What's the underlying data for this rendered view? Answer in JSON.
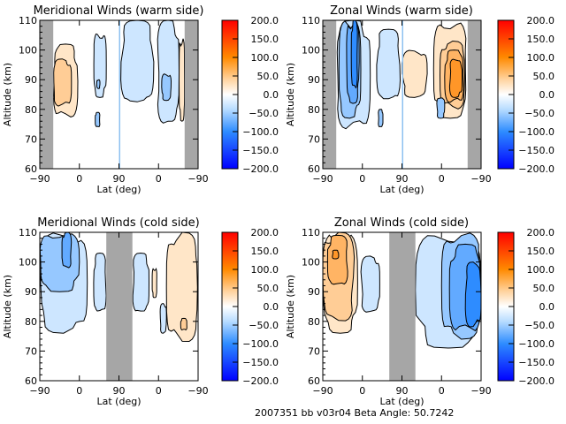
{
  "chart_data": [
    {
      "type": "heatmap",
      "title": "Meridional Winds (warm side)",
      "xlabel": "Lat (deg)",
      "ylabel": "Altitude (km)",
      "x_ticks": [
        "-90",
        "0",
        "90",
        "0",
        "-90"
      ],
      "y_ticks": [
        "60",
        "70",
        "80",
        "90",
        "100",
        "110"
      ],
      "ylim": [
        60,
        110
      ],
      "colorbar": {
        "ticks": [
          "200.0",
          "150.0",
          "100.0",
          "50.0",
          "0.0",
          "-50.0",
          "-100.0",
          "-150.0",
          "-200.0"
        ],
        "range": [
          -200,
          200
        ]
      },
      "no_data_bands": [
        [
          0,
          0.085
        ],
        [
          0.5,
          0.508
        ],
        [
          0.915,
          1.0
        ]
      ],
      "regions": [
        {
          "value": 25,
          "x": [
            0.085,
            0.24
          ],
          "y": [
            77,
            102
          ]
        },
        {
          "value": 50,
          "x": [
            0.085,
            0.2
          ],
          "y": [
            81,
            97
          ]
        },
        {
          "value": -25,
          "x": [
            0.34,
            0.42
          ],
          "y": [
            84,
            106
          ]
        },
        {
          "value": -50,
          "x": [
            0.36,
            0.38
          ],
          "y": [
            87,
            90
          ]
        },
        {
          "value": -50,
          "x": [
            0.35,
            0.38
          ],
          "y": [
            74,
            79
          ]
        },
        {
          "value": -25,
          "x": [
            0.51,
            0.72
          ],
          "y": [
            82,
            110
          ]
        },
        {
          "value": -25,
          "x": [
            0.74,
            0.88
          ],
          "y": [
            75,
            110
          ]
        },
        {
          "value": -50,
          "x": [
            0.77,
            0.83
          ],
          "y": [
            83,
            92
          ]
        },
        {
          "value": 25,
          "x": [
            0.88,
            0.915
          ],
          "y": [
            76,
            104
          ]
        }
      ]
    },
    {
      "type": "heatmap",
      "title": "Zonal Winds (warm side)",
      "xlabel": "Lat (deg)",
      "ylabel": "Altitude (km)",
      "x_ticks": [
        "-90",
        "0",
        "90",
        "0",
        "-90"
      ],
      "y_ticks": [
        "60",
        "70",
        "80",
        "90",
        "100",
        "110"
      ],
      "ylim": [
        60,
        110
      ],
      "colorbar": {
        "ticks": [
          "200.0",
          "150.0",
          "100.0",
          "50.0",
          "0.0",
          "-50.0",
          "-100.0",
          "-150.0",
          "-200.0"
        ],
        "range": [
          -200,
          200
        ]
      },
      "no_data_bands": [
        [
          0,
          0.085
        ],
        [
          0.5,
          0.508
        ],
        [
          0.915,
          1.0
        ]
      ],
      "regions": [
        {
          "value": -25,
          "x": [
            0.085,
            0.3
          ],
          "y": [
            73,
            110
          ]
        },
        {
          "value": -50,
          "x": [
            0.1,
            0.24
          ],
          "y": [
            77,
            110
          ]
        },
        {
          "value": -75,
          "x": [
            0.15,
            0.23
          ],
          "y": [
            82,
            110
          ]
        },
        {
          "value": -100,
          "x": [
            0.18,
            0.22
          ],
          "y": [
            87,
            110
          ]
        },
        {
          "value": -25,
          "x": [
            0.34,
            0.49
          ],
          "y": [
            83,
            107
          ]
        },
        {
          "value": -50,
          "x": [
            0.35,
            0.38
          ],
          "y": [
            74,
            80
          ]
        },
        {
          "value": 25,
          "x": [
            0.5,
            0.66
          ],
          "y": [
            84,
            100
          ]
        },
        {
          "value": 25,
          "x": [
            0.7,
            0.91
          ],
          "y": [
            77,
            110
          ]
        },
        {
          "value": 50,
          "x": [
            0.74,
            0.9
          ],
          "y": [
            80,
            103
          ]
        },
        {
          "value": 75,
          "x": [
            0.77,
            0.89
          ],
          "y": [
            82,
            100
          ]
        },
        {
          "value": 100,
          "x": [
            0.8,
            0.88
          ],
          "y": [
            84,
            97
          ]
        },
        {
          "value": -50,
          "x": [
            0.72,
            0.77
          ],
          "y": [
            77,
            84
          ]
        }
      ]
    },
    {
      "type": "heatmap",
      "title": "Meridional Winds (cold side)",
      "xlabel": "Lat (deg)",
      "ylabel": "Altitude (km)",
      "x_ticks": [
        "-90",
        "0",
        "90",
        "0",
        "-90"
      ],
      "y_ticks": [
        "60",
        "70",
        "80",
        "90",
        "100",
        "110"
      ],
      "ylim": [
        60,
        110
      ],
      "colorbar": {
        "ticks": [
          "200.0",
          "150.0",
          "100.0",
          "50.0",
          "0.0",
          "-50.0",
          "-100.0",
          "-150.0",
          "-200.0"
        ],
        "range": [
          -200,
          200
        ]
      },
      "no_data_bands": [
        [
          0.42,
          0.585
        ]
      ],
      "regions": [
        {
          "value": -25,
          "x": [
            0.0,
            0.3
          ],
          "y": [
            76,
            110
          ]
        },
        {
          "value": -50,
          "x": [
            0.0,
            0.25
          ],
          "y": [
            90,
            110
          ]
        },
        {
          "value": -75,
          "x": [
            0.14,
            0.2
          ],
          "y": [
            98,
            110
          ]
        },
        {
          "value": -25,
          "x": [
            0.34,
            0.42
          ],
          "y": [
            83,
            103
          ]
        },
        {
          "value": -25,
          "x": [
            0.585,
            0.69
          ],
          "y": [
            83,
            103
          ]
        },
        {
          "value": -25,
          "x": [
            0.76,
            0.8
          ],
          "y": [
            76,
            86
          ]
        },
        {
          "value": 25,
          "x": [
            0.71,
            0.74
          ],
          "y": [
            88,
            98
          ]
        },
        {
          "value": 25,
          "x": [
            0.8,
            1.0
          ],
          "y": [
            73,
            110
          ]
        },
        {
          "value": 50,
          "x": [
            0.89,
            0.93
          ],
          "y": [
            77,
            81
          ]
        }
      ]
    },
    {
      "type": "heatmap",
      "title": "Zonal Winds (cold side)",
      "xlabel": "Lat (deg)",
      "ylabel": "Altitude (km)",
      "x_ticks": [
        "-90",
        "0",
        "90",
        "0",
        "-90"
      ],
      "y_ticks": [
        "60",
        "70",
        "80",
        "90",
        "100",
        "110"
      ],
      "ylim": [
        60,
        110
      ],
      "colorbar": {
        "ticks": [
          "200.0",
          "150.0",
          "100.0",
          "50.0",
          "0.0",
          "-50.0",
          "-100.0",
          "-150.0",
          "-200.0"
        ],
        "range": [
          -200,
          200
        ]
      },
      "no_data_bands": [
        [
          0.42,
          0.585
        ]
      ],
      "regions": [
        {
          "value": 25,
          "x": [
            0.0,
            0.22
          ],
          "y": [
            76,
            110
          ]
        },
        {
          "value": 50,
          "x": [
            0.0,
            0.2
          ],
          "y": [
            80,
            110
          ]
        },
        {
          "value": 75,
          "x": [
            0.03,
            0.16
          ],
          "y": [
            92,
            109
          ]
        },
        {
          "value": 100,
          "x": [
            0.06,
            0.1
          ],
          "y": [
            101,
            104
          ]
        },
        {
          "value": -25,
          "x": [
            0.24,
            0.36
          ],
          "y": [
            83,
            102
          ]
        },
        {
          "value": -25,
          "x": [
            0.585,
            1.0
          ],
          "y": [
            71,
            110
          ]
        },
        {
          "value": -50,
          "x": [
            0.75,
            1.0
          ],
          "y": [
            74,
            110
          ]
        },
        {
          "value": -75,
          "x": [
            0.8,
            1.0
          ],
          "y": [
            76,
            106
          ]
        },
        {
          "value": -100,
          "x": [
            0.9,
            1.0
          ],
          "y": [
            78,
            100
          ]
        }
      ]
    }
  ],
  "footer": {
    "text": "2007351 bb v03r04   Beta Angle: 50.7242"
  }
}
